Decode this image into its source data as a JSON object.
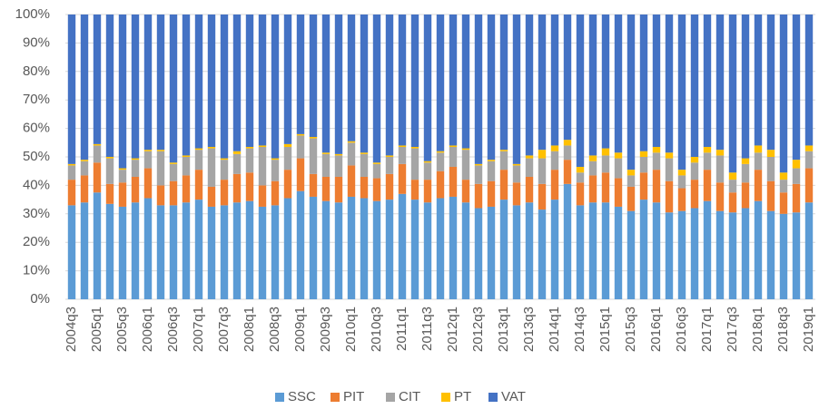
{
  "chart_data": {
    "type": "stacked_bar",
    "categories": [
      "2004q3",
      null,
      "2005q1",
      null,
      "2005q3",
      null,
      "2006q1",
      null,
      "2006q3",
      null,
      "2007q1",
      null,
      "2007q3",
      null,
      "2008q1",
      null,
      "2008q3",
      null,
      "2009q1",
      null,
      "2009q3",
      null,
      "2010q1",
      null,
      "2010q3",
      null,
      "2011q1",
      null,
      "2011q3",
      null,
      "2012q1",
      null,
      "2012q3",
      null,
      "2013q1",
      null,
      "2013q3",
      null,
      "2014q1",
      null,
      "2014q3",
      null,
      "2015q1",
      null,
      "2015q3",
      null,
      "2016q1",
      null,
      "2016q3",
      null,
      "2017q1",
      null,
      "2017q3",
      null,
      "2018q1",
      null,
      "2018q3",
      null,
      "2019q1"
    ],
    "series": [
      {
        "name": "SSC",
        "color": "#5b9bd5",
        "values": [
          33,
          34,
          37.5,
          33.5,
          32.5,
          34,
          35.5,
          33,
          33,
          34,
          35,
          32.5,
          33,
          34,
          34.5,
          32.5,
          33,
          35.5,
          38,
          36,
          34.5,
          34,
          36,
          35.5,
          34.5,
          35,
          37,
          35,
          34,
          35.5,
          36,
          34,
          32,
          32.5,
          35,
          33,
          34,
          31.5,
          35,
          40.5,
          33,
          34,
          34,
          32.5,
          31,
          35,
          34,
          30.5,
          31,
          32,
          34.5,
          31,
          30.5,
          32,
          34.5,
          31,
          30,
          30.5,
          34
        ]
      },
      {
        "name": "PIT",
        "color": "#ed7d31",
        "values": [
          9,
          9.5,
          10.5,
          7,
          8.5,
          9,
          10.5,
          7,
          8.5,
          9.5,
          10.5,
          7,
          9,
          10,
          10,
          7.5,
          8.5,
          10,
          11.5,
          8,
          8.5,
          9,
          11,
          7.5,
          8,
          9,
          10.5,
          7,
          8,
          9.5,
          10.5,
          8,
          8.5,
          9,
          10.5,
          8,
          9,
          9,
          10.5,
          8.5,
          8,
          9.5,
          10.5,
          10,
          8.5,
          9.5,
          11.5,
          11,
          8,
          10,
          11,
          10,
          7,
          9,
          11,
          10.5,
          7.5,
          10,
          12
        ]
      },
      {
        "name": "CIT",
        "color": "#a5a5a5",
        "values": [
          5,
          5,
          6,
          9,
          4.5,
          6,
          6,
          12,
          6,
          6.5,
          7,
          13.5,
          7,
          7,
          8.5,
          13.5,
          7.5,
          8,
          8,
          12.5,
          8,
          7.5,
          8,
          8,
          5,
          6,
          6,
          11,
          6,
          6.5,
          7,
          10.5,
          6.5,
          7,
          6.5,
          6,
          6.5,
          9,
          6.5,
          5,
          3.5,
          5,
          6,
          7,
          4,
          5.5,
          6,
          8,
          4.5,
          6,
          6,
          9.5,
          4.5,
          6.5,
          6,
          8.5,
          4.5,
          5.5,
          6
        ]
      },
      {
        "name": "PT",
        "color": "#ffc000",
        "values": [
          0.5,
          0.5,
          0.5,
          0.5,
          0.5,
          0.5,
          0.5,
          0.5,
          0.5,
          0.5,
          0.5,
          0.5,
          0.5,
          1,
          0.5,
          0.5,
          0.5,
          1,
          0.5,
          0.5,
          0.5,
          0.5,
          0.5,
          0.5,
          0.5,
          0.5,
          0.5,
          0.5,
          0.5,
          0.5,
          0.5,
          0.5,
          0.5,
          0.5,
          0.5,
          0.5,
          1,
          3,
          2,
          2,
          2,
          2,
          2.5,
          2,
          2,
          2,
          2,
          2,
          2,
          2,
          2,
          2,
          2.5,
          2,
          2.5,
          2.5,
          2.5,
          3,
          2
        ]
      },
      {
        "name": "VAT",
        "color": "#4472c4",
        "values": [
          52.5,
          51,
          45.5,
          50,
          54,
          50.5,
          47.5,
          47.5,
          52,
          49.5,
          47,
          46.5,
          50.5,
          48,
          46.5,
          46,
          50.5,
          45.5,
          42,
          43,
          48.5,
          49,
          44.5,
          48.5,
          52,
          49.5,
          46,
          46.5,
          51.5,
          48,
          46,
          47,
          52.5,
          51,
          47.5,
          52.5,
          49.5,
          47.5,
          46,
          44,
          53.5,
          49.5,
          47,
          48.5,
          54.5,
          48,
          46.5,
          48.5,
          54.5,
          50,
          46.5,
          47.5,
          55.5,
          50.5,
          46,
          47.5,
          55.5,
          51,
          46
        ]
      }
    ],
    "ylim": [
      0,
      100
    ],
    "yticks": [
      {
        "value": 0,
        "label": "0%"
      },
      {
        "value": 10,
        "label": "10%"
      },
      {
        "value": 20,
        "label": "20%"
      },
      {
        "value": 30,
        "label": "30%"
      },
      {
        "value": 40,
        "label": "40%"
      },
      {
        "value": 50,
        "label": "50%"
      },
      {
        "value": 60,
        "label": "60%"
      },
      {
        "value": 70,
        "label": "70%"
      },
      {
        "value": 80,
        "label": "80%"
      },
      {
        "value": 90,
        "label": "90%"
      },
      {
        "value": 100,
        "label": "100%"
      }
    ],
    "grid": true,
    "legend": "bottom"
  }
}
